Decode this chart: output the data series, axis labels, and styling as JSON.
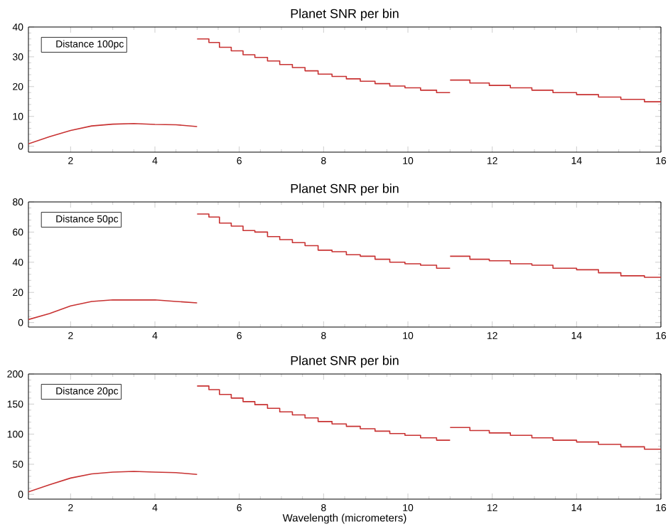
{
  "chart_data": [
    {
      "type": "line",
      "title": "Planet SNR per bin",
      "xlim": [
        1,
        16
      ],
      "xticks": [
        2,
        4,
        6,
        8,
        10,
        12,
        14,
        16
      ],
      "ylim": [
        -2,
        40
      ],
      "yticks": [
        0,
        10,
        20,
        30,
        40
      ],
      "annotations": [
        "Distance 100pc"
      ],
      "series": [
        {
          "color": "#c83232",
          "x": [
            1,
            1.5,
            2,
            2.5,
            3,
            3.5,
            4,
            4.5,
            5
          ],
          "values": [
            0.8,
            3.2,
            5.3,
            6.8,
            7.4,
            7.6,
            7.3,
            7.2,
            6.6
          ]
        },
        {
          "type": "step",
          "color": "#c83232",
          "x": [
            5,
            5.28,
            5.53,
            5.81,
            6.09,
            6.37,
            6.67,
            6.96,
            7.26,
            7.56,
            7.87,
            8.2,
            8.54,
            8.87,
            9.22,
            9.57,
            9.93,
            10.3,
            10.68,
            11
          ],
          "values": [
            36,
            34.8,
            33.2,
            32,
            30.7,
            29.8,
            28.6,
            27.4,
            26.4,
            25.3,
            24.2,
            23.4,
            22.6,
            21.8,
            21,
            20.2,
            19.6,
            18.8,
            18,
            18
          ]
        },
        {
          "type": "step",
          "color": "#c83232",
          "x": [
            11,
            11.47,
            11.93,
            12.43,
            12.94,
            13.44,
            14,
            14.52,
            15.05,
            15.61,
            16
          ],
          "values": [
            22.2,
            21.2,
            20.4,
            19.6,
            18.8,
            18,
            17.3,
            16.5,
            15.7,
            14.9,
            14.9
          ]
        }
      ]
    },
    {
      "type": "line",
      "title": "Planet SNR per bin",
      "xlim": [
        1,
        16
      ],
      "xticks": [
        2,
        4,
        6,
        8,
        10,
        12,
        14,
        16
      ],
      "ylim": [
        -3,
        80
      ],
      "yticks": [
        0,
        20,
        40,
        60,
        80
      ],
      "annotations": [
        "Distance 50pc"
      ],
      "series": [
        {
          "color": "#c83232",
          "x": [
            1,
            1.5,
            2,
            2.5,
            3,
            3.5,
            4,
            4.5,
            5
          ],
          "values": [
            2,
            6,
            11,
            14,
            15,
            15,
            15,
            14,
            13
          ]
        },
        {
          "type": "step",
          "color": "#c83232",
          "x": [
            5,
            5.28,
            5.53,
            5.81,
            6.09,
            6.37,
            6.67,
            6.96,
            7.26,
            7.56,
            7.87,
            8.2,
            8.54,
            8.87,
            9.22,
            9.57,
            9.93,
            10.3,
            10.68,
            11
          ],
          "values": [
            72,
            70,
            66,
            64,
            61,
            60,
            57,
            55,
            53,
            51,
            48,
            47,
            45,
            44,
            42,
            40,
            39,
            38,
            36,
            36
          ]
        },
        {
          "type": "step",
          "color": "#c83232",
          "x": [
            11,
            11.47,
            11.93,
            12.43,
            12.94,
            13.44,
            14,
            14.52,
            15.05,
            15.61,
            16
          ],
          "values": [
            44,
            42,
            41,
            39,
            38,
            36,
            35,
            33,
            31,
            30,
            30
          ]
        }
      ]
    },
    {
      "type": "line",
      "title": "Planet SNR per bin",
      "xlabel": "Wavelength (micrometers)",
      "xlim": [
        1,
        16
      ],
      "xticks": [
        2,
        4,
        6,
        8,
        10,
        12,
        14,
        16
      ],
      "ylim": [
        -8,
        200
      ],
      "yticks": [
        0,
        50,
        100,
        150,
        200
      ],
      "annotations": [
        "Distance 20pc"
      ],
      "series": [
        {
          "color": "#c83232",
          "x": [
            1,
            1.5,
            2,
            2.5,
            3,
            3.5,
            4,
            4.5,
            5
          ],
          "values": [
            4,
            16,
            27,
            34,
            37,
            38,
            37,
            36,
            33
          ]
        },
        {
          "type": "step",
          "color": "#c83232",
          "x": [
            5,
            5.28,
            5.53,
            5.81,
            6.09,
            6.37,
            6.67,
            6.96,
            7.26,
            7.56,
            7.87,
            8.2,
            8.54,
            8.87,
            9.22,
            9.57,
            9.93,
            10.3,
            10.68,
            11
          ],
          "values": [
            180,
            174,
            166,
            160,
            154,
            149,
            143,
            137,
            132,
            127,
            121,
            117,
            113,
            109,
            105,
            101,
            98,
            94,
            90,
            90
          ]
        },
        {
          "type": "step",
          "color": "#c83232",
          "x": [
            11,
            11.47,
            11.93,
            12.43,
            12.94,
            13.44,
            14,
            14.52,
            15.05,
            15.61,
            16
          ],
          "values": [
            111,
            106,
            102,
            98,
            94,
            90,
            87,
            83,
            79,
            75,
            75
          ]
        }
      ]
    }
  ]
}
